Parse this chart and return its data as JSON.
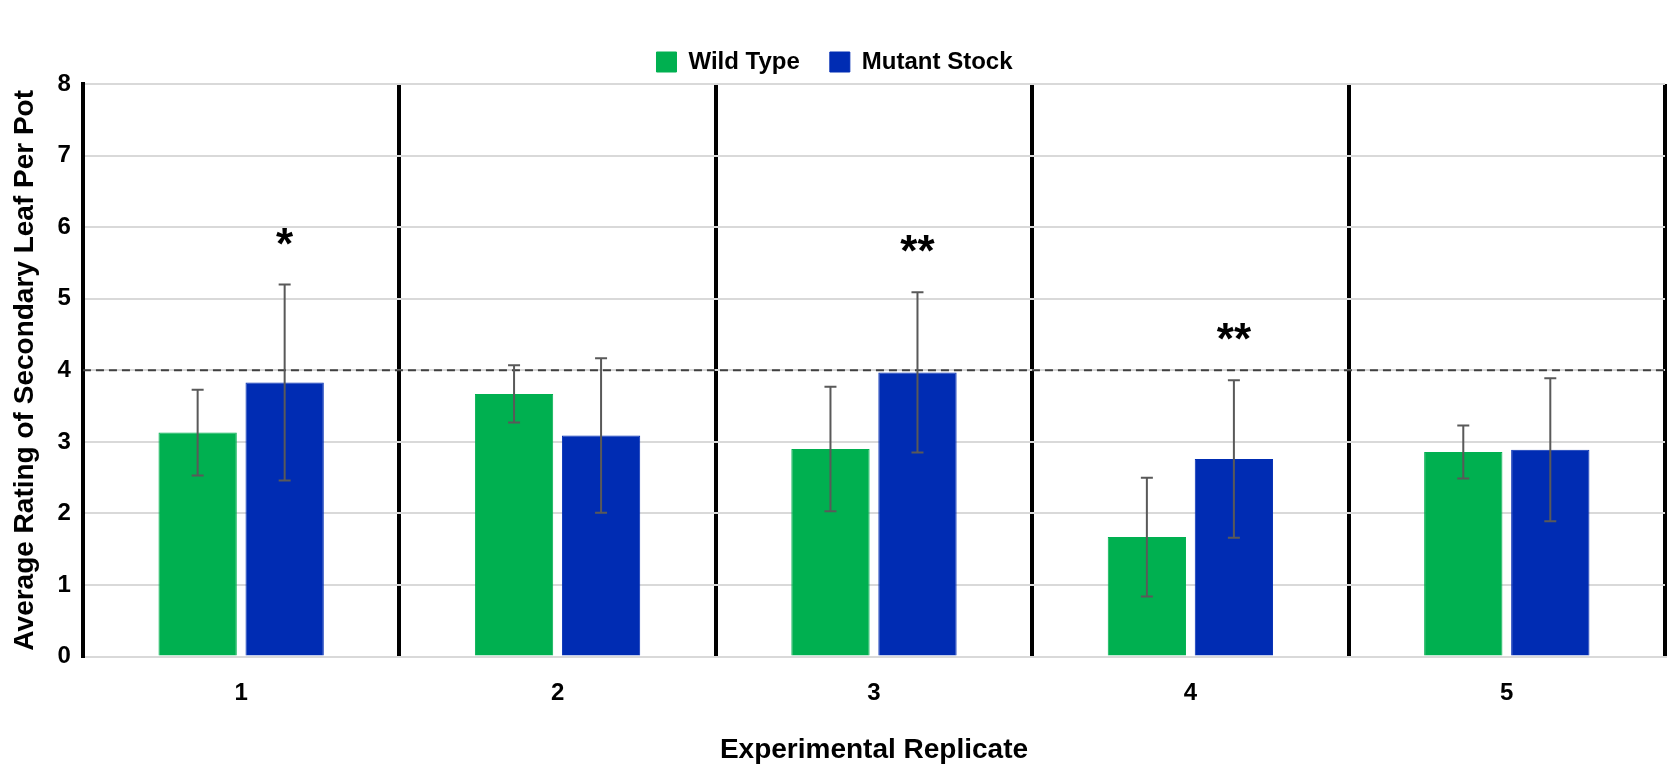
{
  "chart_data": {
    "type": "bar",
    "xlabel": "Experimental Replicate",
    "ylabel": "Average Rating of Secondary Leaf Per Pot",
    "categories": [
      "1",
      "2",
      "3",
      "4",
      "5"
    ],
    "series": [
      {
        "name": "Wild Type",
        "color": "#00b050",
        "values": [
          3.13,
          3.67,
          2.9,
          1.67,
          2.86
        ],
        "errors": [
          0.6,
          0.4,
          0.87,
          0.83,
          0.37
        ]
      },
      {
        "name": "Mutant Stock",
        "color": "#002cb3",
        "values": [
          3.83,
          3.09,
          3.97,
          2.76,
          2.89
        ],
        "errors": [
          1.37,
          1.08,
          1.12,
          1.1,
          1.0
        ]
      }
    ],
    "ylim": [
      0,
      8
    ],
    "yticks": [
      0,
      1,
      2,
      3,
      4,
      5,
      6,
      7,
      8
    ],
    "grid": true,
    "legend": "top",
    "ref_lines": [
      {
        "axis": "y",
        "value": 4,
        "line_style": "dashed",
        "color": "#404040"
      }
    ],
    "annotations": [
      {
        "text": "*",
        "x": "1",
        "y": 3.83
      },
      {
        "text": "**",
        "x": "3",
        "y": 3.97
      },
      {
        "text": "**",
        "x": "4",
        "y": 2.76
      }
    ]
  }
}
